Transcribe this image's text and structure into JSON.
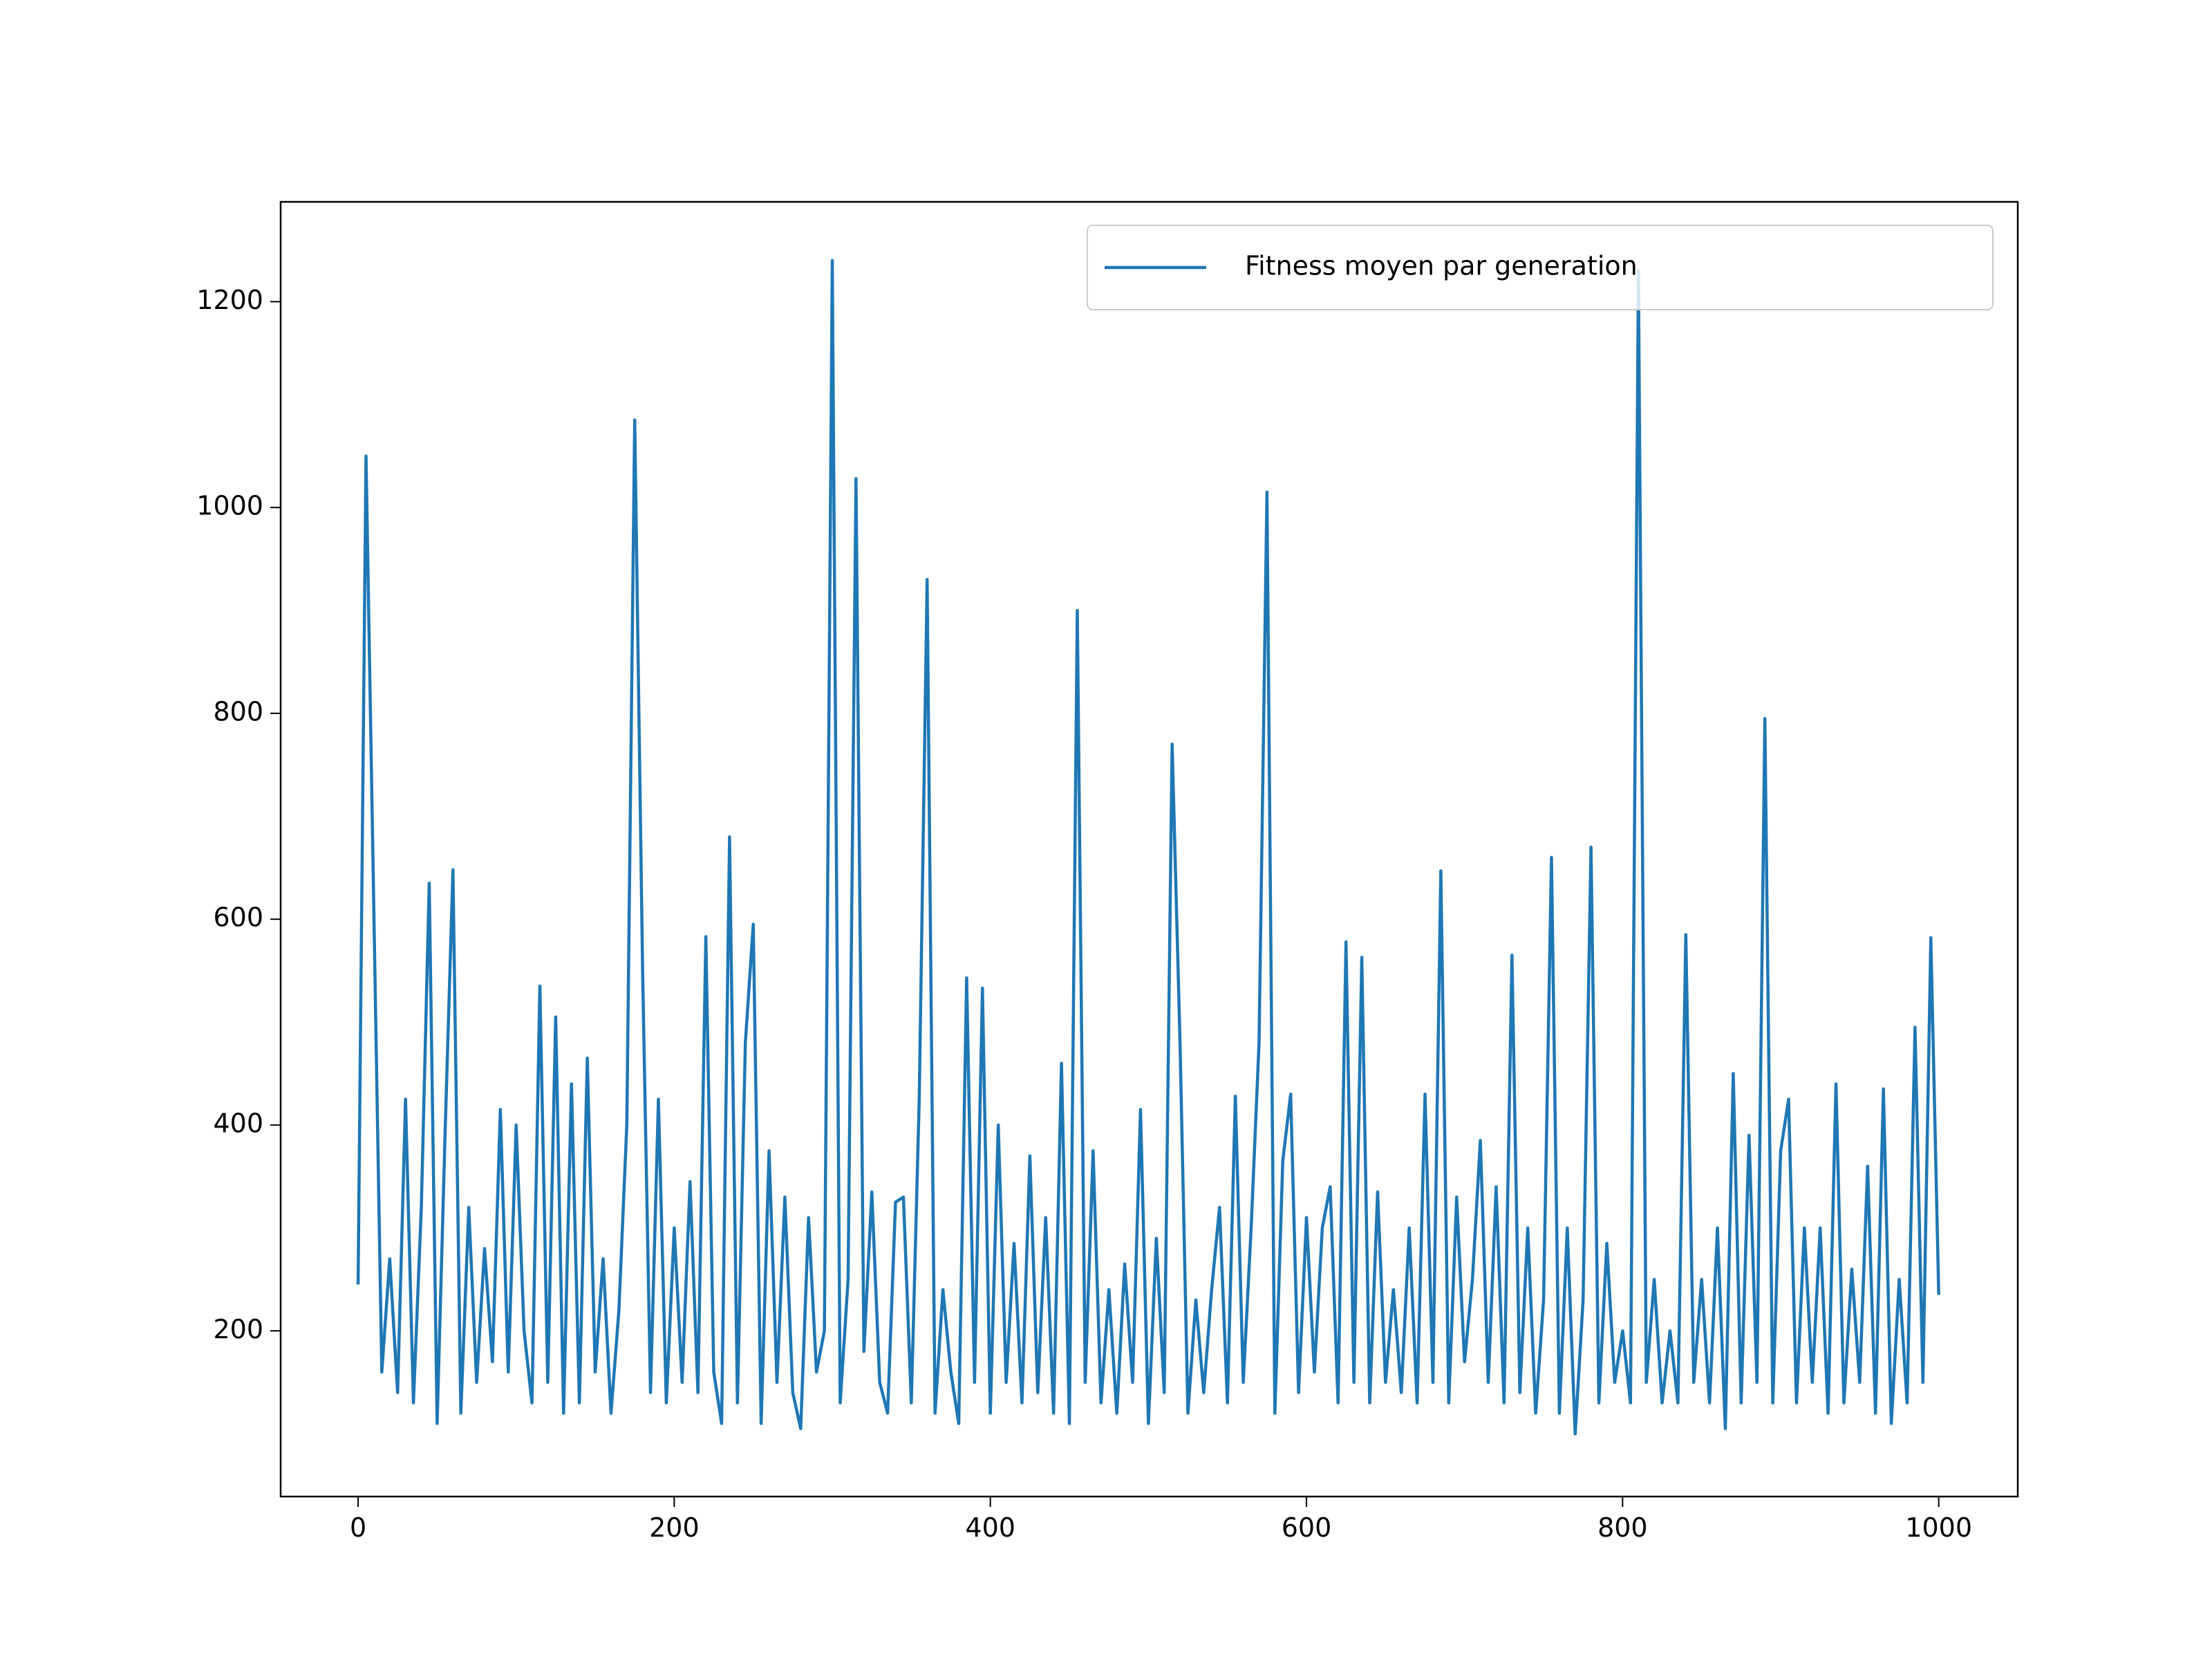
{
  "chart_data": {
    "type": "line",
    "x": [
      0,
      5,
      10,
      15,
      20,
      25,
      30,
      35,
      40,
      45,
      50,
      55,
      60,
      65,
      70,
      75,
      80,
      85,
      90,
      95,
      100,
      105,
      110,
      115,
      120,
      125,
      130,
      135,
      140,
      145,
      150,
      155,
      160,
      165,
      170,
      175,
      180,
      185,
      190,
      195,
      200,
      205,
      210,
      215,
      220,
      225,
      230,
      235,
      240,
      245,
      250,
      255,
      260,
      265,
      270,
      275,
      280,
      285,
      290,
      295,
      300,
      305,
      310,
      315,
      320,
      325,
      330,
      335,
      340,
      345,
      350,
      355,
      360,
      365,
      370,
      375,
      380,
      385,
      390,
      395,
      400,
      405,
      410,
      415,
      420,
      425,
      430,
      435,
      440,
      445,
      450,
      455,
      460,
      465,
      470,
      475,
      480,
      485,
      490,
      495,
      500,
      505,
      510,
      515,
      520,
      525,
      530,
      535,
      540,
      545,
      550,
      555,
      560,
      565,
      570,
      575,
      580,
      585,
      590,
      595,
      600,
      605,
      610,
      615,
      620,
      625,
      630,
      635,
      640,
      645,
      650,
      655,
      660,
      665,
      670,
      675,
      680,
      685,
      690,
      695,
      700,
      705,
      710,
      715,
      720,
      725,
      730,
      735,
      740,
      745,
      750,
      755,
      760,
      765,
      770,
      775,
      780,
      785,
      790,
      795,
      800,
      805,
      810,
      815,
      820,
      825,
      830,
      835,
      840,
      845,
      850,
      855,
      860,
      865,
      870,
      875,
      880,
      885,
      890,
      895,
      900,
      905,
      910,
      915,
      920,
      925,
      930,
      935,
      940,
      945,
      950,
      955,
      960,
      965,
      970,
      975,
      980,
      985,
      990,
      995,
      1000
    ],
    "series": [
      {
        "name": "Fitness moyen par generation",
        "color": "#1f77b4",
        "values": [
          245,
          1050,
          605,
          160,
          270,
          140,
          425,
          130,
          320,
          635,
          110,
          390,
          648,
          120,
          320,
          150,
          280,
          170,
          415,
          160,
          400,
          200,
          130,
          535,
          150,
          505,
          120,
          440,
          130,
          465,
          160,
          270,
          120,
          220,
          400,
          1085,
          550,
          140,
          425,
          130,
          300,
          150,
          345,
          140,
          583,
          160,
          110,
          680,
          130,
          480,
          595,
          110,
          375,
          150,
          330,
          140,
          105,
          310,
          160,
          200,
          1240,
          130,
          250,
          1028,
          180,
          335,
          150,
          120,
          325,
          330,
          130,
          425,
          930,
          120,
          240,
          160,
          110,
          543,
          150,
          533,
          120,
          400,
          150,
          285,
          130,
          370,
          140,
          310,
          120,
          460,
          110,
          900,
          150,
          375,
          130,
          240,
          120,
          265,
          150,
          415,
          110,
          290,
          140,
          770,
          480,
          120,
          230,
          140,
          240,
          320,
          130,
          428,
          150,
          300,
          480,
          1015,
          120,
          365,
          430,
          140,
          310,
          160,
          300,
          340,
          130,
          578,
          150,
          563,
          130,
          335,
          150,
          240,
          140,
          300,
          130,
          430,
          150,
          647,
          130,
          330,
          170,
          250,
          385,
          150,
          340,
          130,
          565,
          140,
          300,
          120,
          230,
          660,
          120,
          300,
          100,
          230,
          670,
          130,
          285,
          150,
          200,
          130,
          1230,
          150,
          250,
          130,
          200,
          130,
          585,
          150,
          250,
          130,
          300,
          105,
          450,
          130,
          390,
          150,
          795,
          130,
          375,
          425,
          130,
          300,
          150,
          300,
          120,
          440,
          130,
          260,
          150,
          360,
          120,
          435,
          110,
          250,
          130,
          495,
          150,
          582,
          235
        ]
      }
    ],
    "xlim": [
      -49,
      1050
    ],
    "xticks": [
      0,
      200,
      400,
      600,
      800,
      1000
    ],
    "ylim": [
      39,
      1297
    ],
    "yticks": [
      200,
      400,
      600,
      800,
      1000,
      1200
    ],
    "legend": "upper right"
  }
}
